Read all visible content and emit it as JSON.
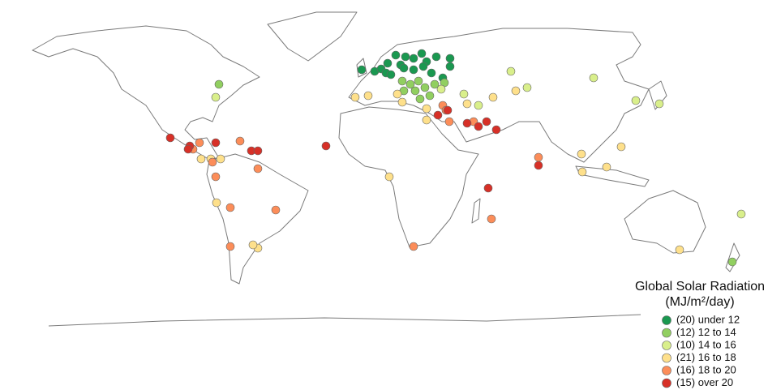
{
  "legend": {
    "title": "Global Solar Radiation",
    "unit": "(MJ/m²/day)",
    "items": [
      {
        "label": "(20) under 12",
        "color": "#1a9850"
      },
      {
        "label": "(12) 12 to 14",
        "color": "#91cf60"
      },
      {
        "label": "(10) 14 to 16",
        "color": "#d9ef8b"
      },
      {
        "label": "(21) 16 to 18",
        "color": "#fee08b"
      },
      {
        "label": "(16) 18 to 20",
        "color": "#fc8d59"
      },
      {
        "label": "(15) over 20",
        "color": "#d73027"
      }
    ]
  }
}
